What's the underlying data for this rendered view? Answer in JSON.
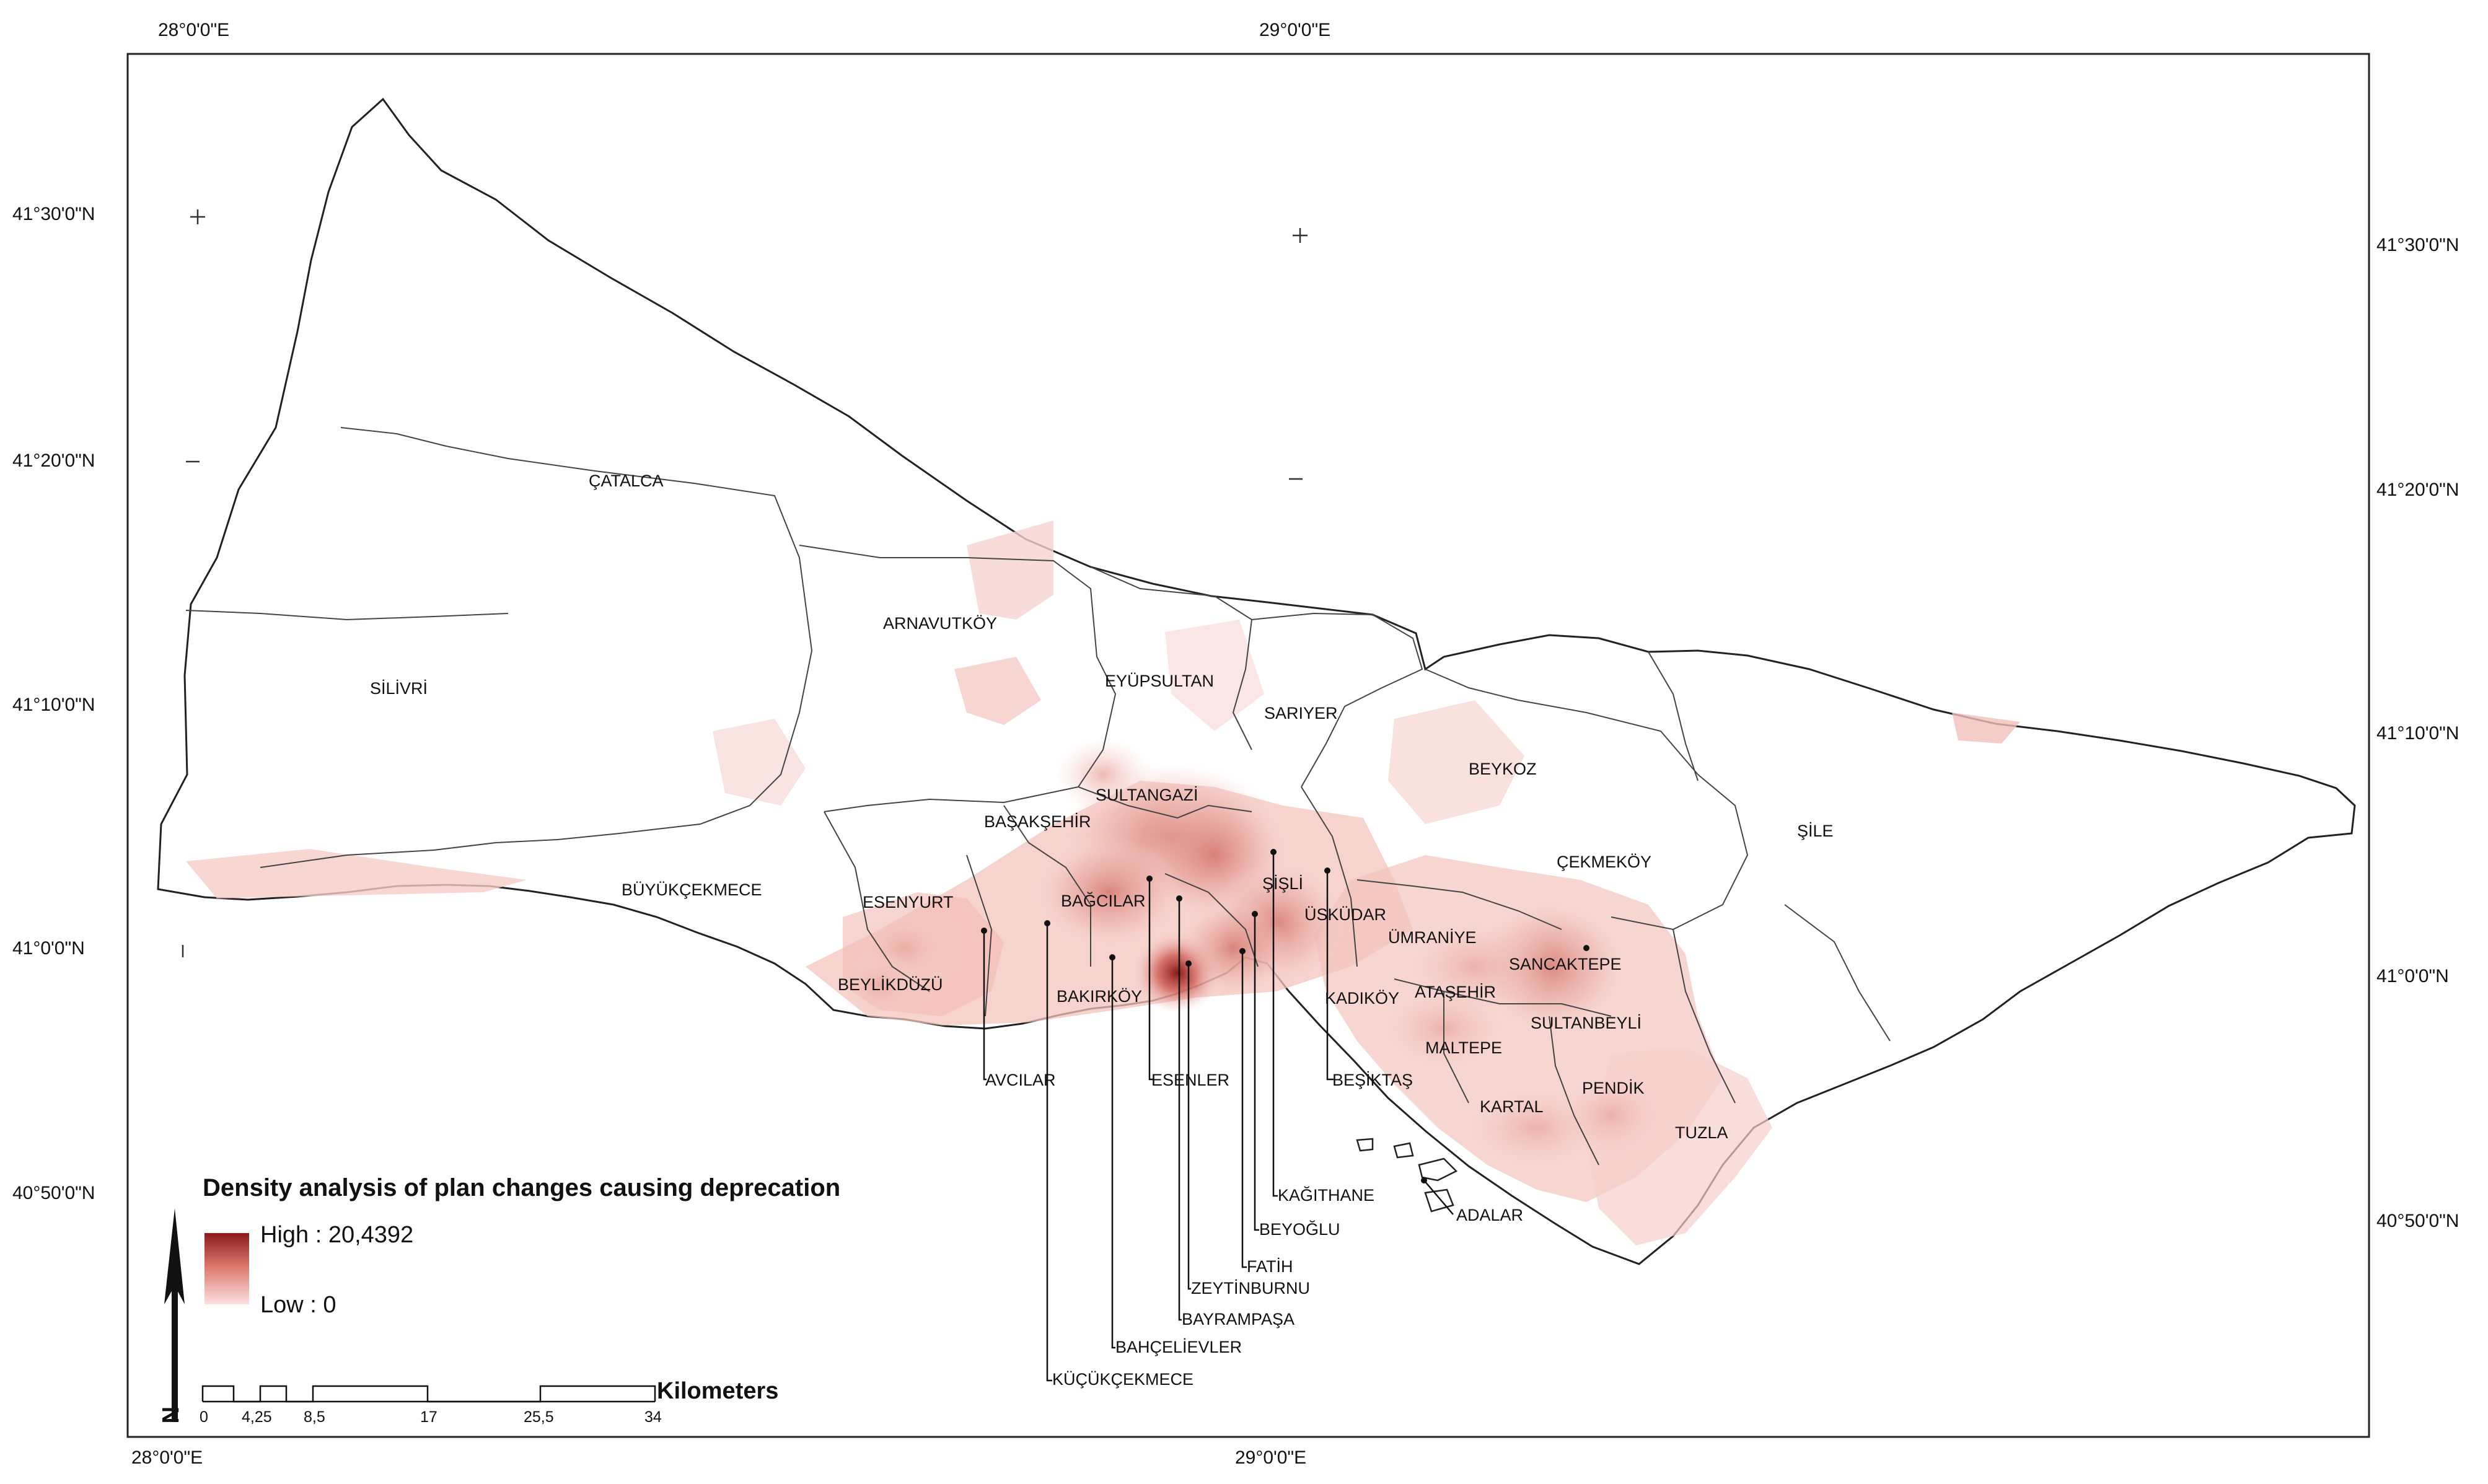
{
  "map": {
    "graticule": {
      "top_lon": [
        "28°0'0\"E",
        "29°0'0\"E"
      ],
      "bottom_lon": [
        "28°0'0\"E",
        "29°0'0\"E"
      ],
      "left_lat": [
        "41°30'0\"N",
        "41°20'0\"N",
        "41°10'0\"N",
        "41°0'0\"N",
        "40°50'0\"N"
      ],
      "right_lat": [
        "41°30'0\"N",
        "41°20'0\"N",
        "41°10'0\"N",
        "41°0'0\"N",
        "40°50'0\"N"
      ]
    },
    "districts": [
      {
        "key": "catalca",
        "label": "ÇATALCA"
      },
      {
        "key": "silivri",
        "label": "SİLİVRİ"
      },
      {
        "key": "arnavutkoy",
        "label": "ARNAVUTKÖY"
      },
      {
        "key": "eyupsultan",
        "label": "EYÜPSULTAN"
      },
      {
        "key": "sariyer",
        "label": "SARIYER"
      },
      {
        "key": "beykoz",
        "label": "BEYKOZ"
      },
      {
        "key": "sile",
        "label": "ŞİLE"
      },
      {
        "key": "cekmekoy",
        "label": "ÇEKMEKÖY"
      },
      {
        "key": "sultangazi",
        "label": "SULTANGAZİ"
      },
      {
        "key": "basaksehir",
        "label": "BAŞAKŞEHİR"
      },
      {
        "key": "buyukcekmece",
        "label": "BÜYÜKÇEKMECE"
      },
      {
        "key": "esenyurt",
        "label": "ESENYURT"
      },
      {
        "key": "bagcilar",
        "label": "BAĞCILAR"
      },
      {
        "key": "sisli",
        "label": "ŞİŞLİ"
      },
      {
        "key": "uskudar",
        "label": "ÜSKÜDAR"
      },
      {
        "key": "umraniye",
        "label": "ÜMRANİYE"
      },
      {
        "key": "sancaktepe",
        "label": "SANCAKTEPE"
      },
      {
        "key": "beylikduzu",
        "label": "BEYLİKDÜZÜ"
      },
      {
        "key": "bakirkoy",
        "label": "BAKIRKÖY"
      },
      {
        "key": "kadikoy",
        "label": "KADIKÖY"
      },
      {
        "key": "atasehir",
        "label": "ATAŞEHİR"
      },
      {
        "key": "sultanbeyli",
        "label": "SULTANBEYLİ"
      },
      {
        "key": "maltepe",
        "label": "MALTEPE"
      },
      {
        "key": "pendik",
        "label": "PENDİK"
      },
      {
        "key": "kartal",
        "label": "KARTAL"
      },
      {
        "key": "tuzla",
        "label": "TUZLA"
      },
      {
        "key": "avcilar",
        "label": "AVCILAR"
      },
      {
        "key": "esenler",
        "label": "ESENLER"
      },
      {
        "key": "besiktas",
        "label": "BEŞİKTAŞ"
      },
      {
        "key": "adalar",
        "label": "ADALAR"
      },
      {
        "key": "kagithane",
        "label": "KAĞITHANE"
      },
      {
        "key": "beyoglu",
        "label": "BEYOĞLU"
      },
      {
        "key": "fatih",
        "label": "FATİH"
      },
      {
        "key": "zeytinburnu",
        "label": "ZEYTİNBURNU"
      },
      {
        "key": "bayrampasa",
        "label": "BAYRAMPAŞA"
      },
      {
        "key": "bahcelievler",
        "label": "BAHÇELİEVLER"
      },
      {
        "key": "kucukcekmece",
        "label": "KÜÇÜKÇEKMECE"
      }
    ]
  },
  "legend": {
    "title": "Density analysis of plan changes causing deprecation",
    "high_label": "High : 20,4392",
    "low_label": "Low : 0",
    "high_value": 20.4392,
    "low_value": 0,
    "color_high": "#8b1a1a",
    "color_low": "#fbe1e1"
  },
  "north_arrow": {
    "label": "N"
  },
  "scale_bar": {
    "ticks": [
      "0",
      "4,25",
      "8,5",
      "17",
      "25,5",
      "34"
    ],
    "unit": "Kilometers"
  },
  "colors": {
    "density_mid": "#e8a7a1",
    "density_light": "#f7d6d3"
  }
}
